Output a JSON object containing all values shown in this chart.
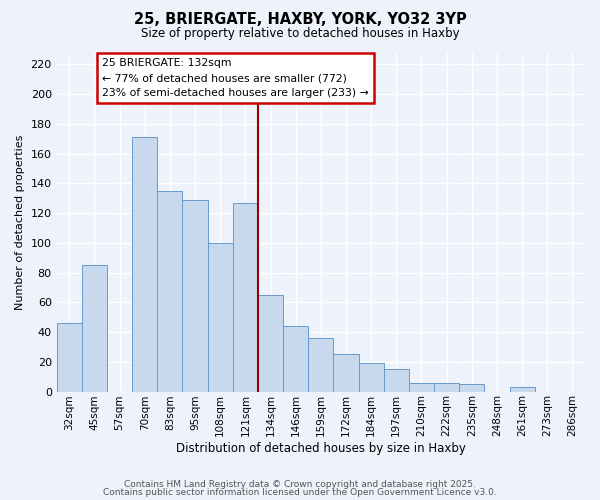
{
  "title": "25, BRIERGATE, HAXBY, YORK, YO32 3YP",
  "subtitle": "Size of property relative to detached houses in Haxby",
  "xlabel": "Distribution of detached houses by size in Haxby",
  "ylabel": "Number of detached properties",
  "bar_labels": [
    "32sqm",
    "45sqm",
    "57sqm",
    "70sqm",
    "83sqm",
    "95sqm",
    "108sqm",
    "121sqm",
    "134sqm",
    "146sqm",
    "159sqm",
    "172sqm",
    "184sqm",
    "197sqm",
    "210sqm",
    "222sqm",
    "235sqm",
    "248sqm",
    "261sqm",
    "273sqm",
    "286sqm"
  ],
  "bar_values": [
    46,
    85,
    0,
    171,
    135,
    129,
    100,
    127,
    65,
    44,
    36,
    25,
    19,
    15,
    6,
    6,
    5,
    0,
    3,
    0,
    0
  ],
  "bar_color": "#c8d9ee",
  "bar_edge_color": "#6699cc",
  "vline_x_index": 8,
  "vline_color": "#990000",
  "annotation_title": "25 BRIERGATE: 132sqm",
  "annotation_line1": "← 77% of detached houses are smaller (772)",
  "annotation_line2": "23% of semi-detached houses are larger (233) →",
  "annotation_box_edgecolor": "#cc0000",
  "ylim_max": 228,
  "yticks": [
    0,
    20,
    40,
    60,
    80,
    100,
    120,
    140,
    160,
    180,
    200,
    220
  ],
  "footer1": "Contains HM Land Registry data © Crown copyright and database right 2025.",
  "footer2": "Contains public sector information licensed under the Open Government Licence v3.0.",
  "bg_color": "#eef2fa",
  "grid_color": "#d0d8e8"
}
